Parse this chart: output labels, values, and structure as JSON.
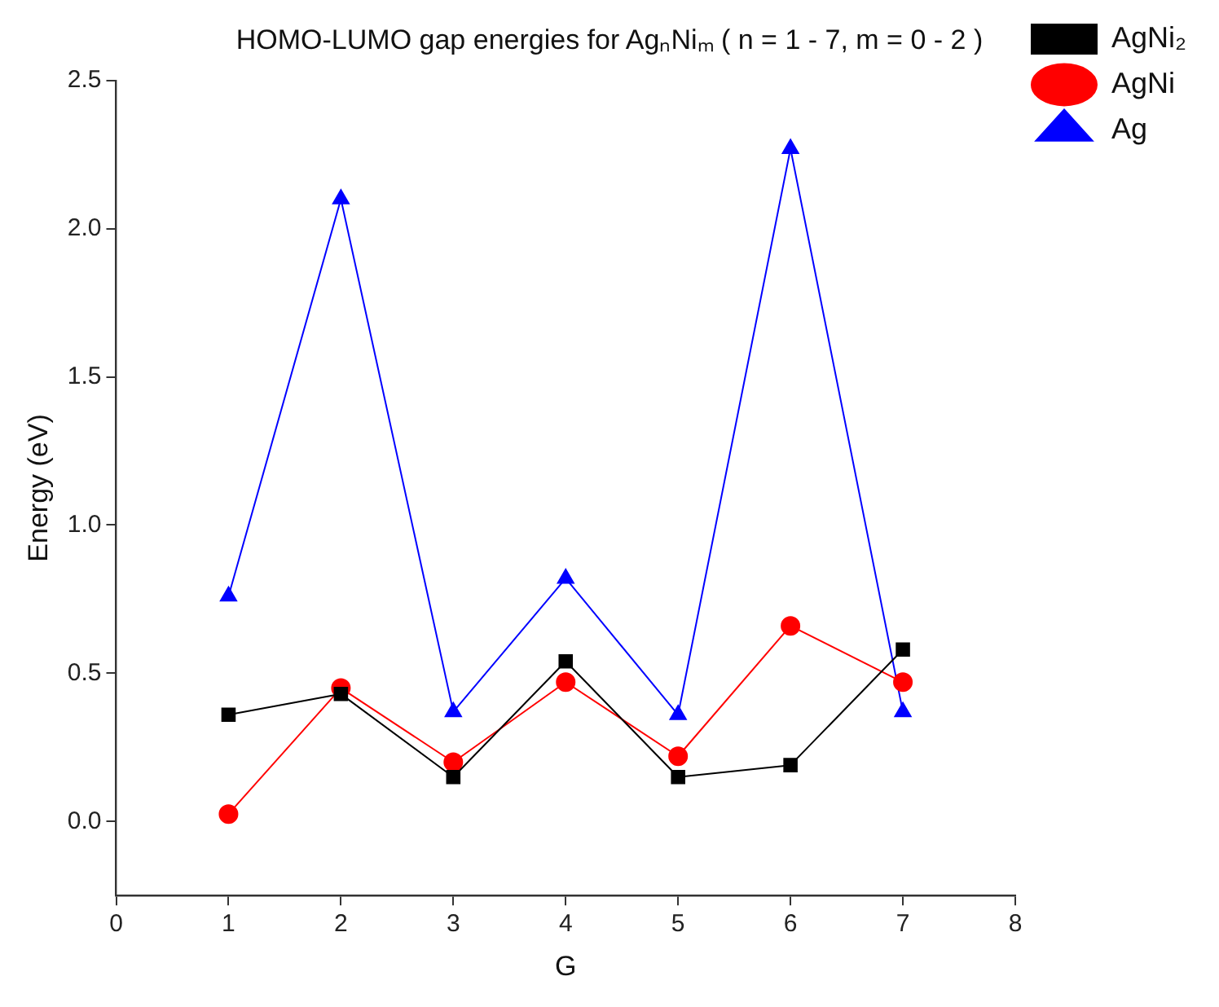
{
  "chart_data": {
    "type": "line",
    "title": "HOMO-LUMO gap energies for AgₙNiₘ ( n = 1 - 7, m = 0 - 2 )",
    "xlabel": "G",
    "ylabel": "Energy (eV)",
    "x": [
      1,
      2,
      3,
      4,
      5,
      6,
      7
    ],
    "series": [
      {
        "name": "AgNi₂",
        "color": "#000000",
        "marker": "square",
        "values": [
          0.36,
          0.43,
          0.15,
          0.54,
          0.15,
          0.19,
          0.58
        ]
      },
      {
        "name": "AgNi",
        "color": "#ff0000",
        "marker": "circle",
        "values": [
          0.025,
          0.45,
          0.2,
          0.47,
          0.22,
          0.66,
          0.47
        ]
      },
      {
        "name": "Ag",
        "color": "#0000ff",
        "marker": "triangle",
        "values": [
          0.76,
          2.1,
          0.37,
          0.82,
          0.36,
          2.27,
          0.37
        ]
      }
    ],
    "xlim": [
      0,
      8
    ],
    "xticks": [
      0,
      1,
      2,
      3,
      4,
      5,
      6,
      7,
      8
    ],
    "ylim": [
      -0.25,
      2.5
    ],
    "yticks": [
      {
        "value": 0,
        "label": "0.0"
      },
      {
        "value": 0.5,
        "label": "0.5"
      },
      {
        "value": 1,
        "label": "1.0"
      },
      {
        "value": 1.5,
        "label": "1.5"
      },
      {
        "value": 2,
        "label": "2.0"
      },
      {
        "value": 2.5,
        "label": "2.5"
      }
    ],
    "grid": false,
    "legend": "right",
    "line_style": "solid"
  }
}
